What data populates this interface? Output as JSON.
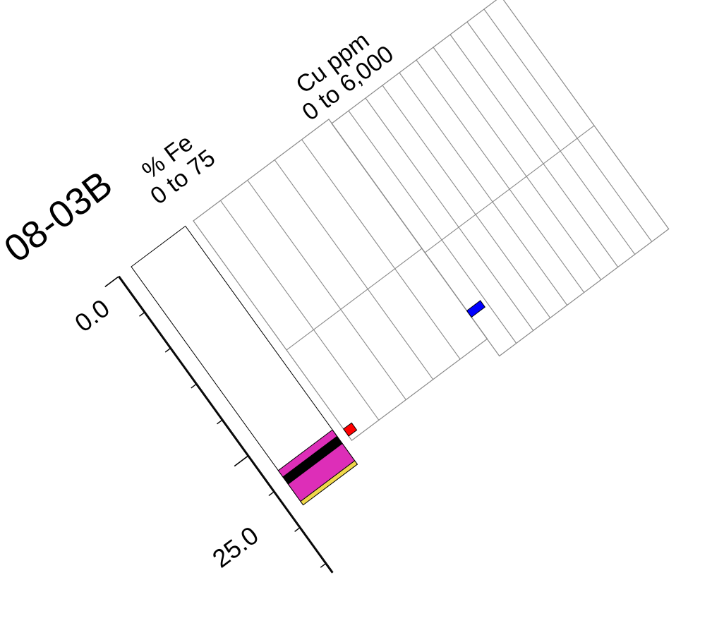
{
  "hole_id": "08-03B",
  "depth_axis": {
    "tick_labels": [
      "0.0",
      "25.0"
    ]
  },
  "tracks": [
    {
      "title": "% Fe",
      "range": "0 to 75",
      "xlim": [
        0,
        75
      ]
    },
    {
      "title": "Cu ppm",
      "range": "0 to 6,000",
      "xlim": [
        0,
        6000
      ]
    }
  ],
  "lithology": [
    {
      "from": 28.4,
      "to": 29.3,
      "color": "#dd2eb8"
    },
    {
      "from": 29.3,
      "to": 30.3,
      "color": "#000000"
    },
    {
      "from": 30.3,
      "to": 32.7,
      "color": "#dd2eb8"
    },
    {
      "from": 32.7,
      "to": 33.2,
      "color": "#f0d84a"
    }
  ],
  "chart_data": [
    {
      "type": "bar",
      "title": "% Fe",
      "subtitle": "0 to 75",
      "orientation": "horizontal",
      "depth_label": "",
      "xlim": [
        0,
        75
      ],
      "series": [
        {
          "color": "#ff0000",
          "points": [
            {
              "depth_from": 29.0,
              "depth_to": 30.0,
              "value": 4.5
            }
          ]
        }
      ]
    },
    {
      "type": "bar",
      "title": "Cu ppm",
      "subtitle": "0 to 6,000",
      "orientation": "horizontal",
      "xlim": [
        0,
        6000
      ],
      "series": [
        {
          "color": "#0000ff",
          "points": [
            {
              "depth_from": 26.1,
              "depth_to": 27.0,
              "value": 480
            }
          ]
        }
      ]
    }
  ]
}
